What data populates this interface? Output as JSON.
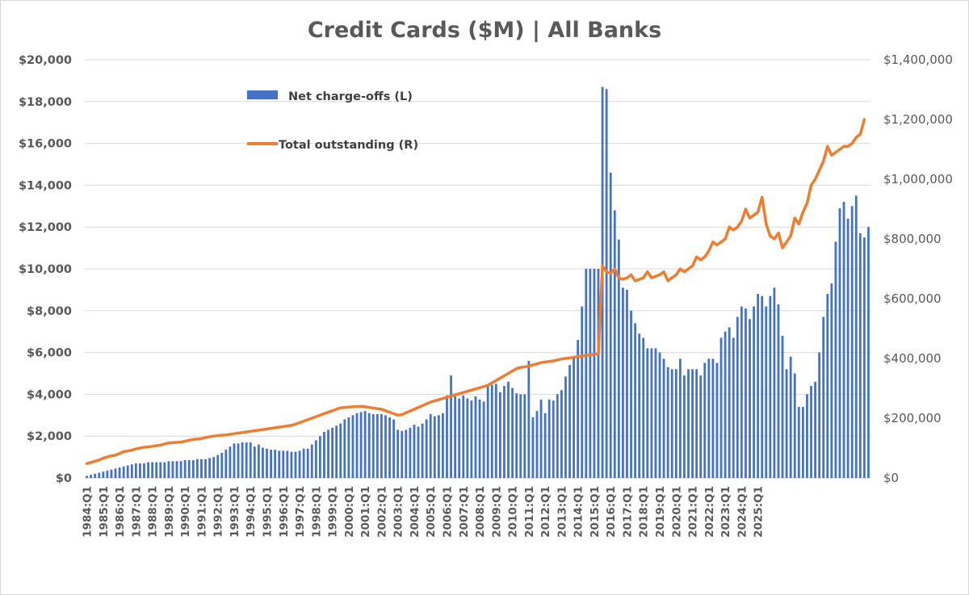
{
  "chart_data": {
    "type": "bar+line",
    "title": "Credit Cards ($M) | All Banks",
    "legend": {
      "placement": "top-left-inside",
      "entries": [
        {
          "name": "Net charge-offs (L)",
          "color": "#4472C4",
          "kind": "bar"
        },
        {
          "name": "Total outstanding (R)",
          "color": "#ED7D31",
          "kind": "line"
        }
      ]
    },
    "x_start": "1984:Q1",
    "x_tick_labels": [
      "1984:Q1",
      "1985:Q1",
      "1986:Q1",
      "1987:Q1",
      "1988:Q1",
      "1989:Q1",
      "1990:Q1",
      "1991:Q1",
      "1992:Q1",
      "1993:Q1",
      "1994:Q1",
      "1995:Q1",
      "1996:Q1",
      "1997:Q1",
      "1998:Q1",
      "1999:Q1",
      "2000:Q1",
      "2001:Q1",
      "2002:Q1",
      "2003:Q1",
      "2004:Q1",
      "2005:Q1",
      "2006:Q1",
      "2007:Q1",
      "2008:Q1",
      "2009:Q1",
      "2010:Q1",
      "2011:Q1",
      "2012:Q1",
      "2013:Q1",
      "2014:Q1",
      "2015:Q1",
      "2016:Q1",
      "2017:Q1",
      "2018:Q1",
      "2019:Q1",
      "2020:Q1",
      "2021:Q1",
      "2022:Q1",
      "2023:Q1",
      "2024:Q1",
      "2025:Q1"
    ],
    "y_left": {
      "min": 0,
      "max": 20000,
      "ticks": [
        "$0",
        "$2,000",
        "$4,000",
        "$6,000",
        "$8,000",
        "$10,000",
        "$12,000",
        "$14,000",
        "$16,000",
        "$18,000",
        "$20,000"
      ]
    },
    "y_right": {
      "min": 0,
      "max": 1400000,
      "ticks": [
        "$0",
        "$200,000",
        "$400,000",
        "$600,000",
        "$800,000",
        "$1,000,000",
        "$1,200,000",
        "$1,400,000"
      ]
    },
    "grid": true,
    "series": [
      {
        "name": "Net charge-offs (L)",
        "axis": "left",
        "kind": "bar",
        "color": "#4472C4",
        "values": [
          100,
          150,
          200,
          250,
          300,
          350,
          400,
          450,
          500,
          550,
          600,
          650,
          700,
          700,
          700,
          750,
          750,
          750,
          750,
          750,
          800,
          800,
          800,
          800,
          850,
          850,
          850,
          900,
          900,
          900,
          950,
          1000,
          1100,
          1200,
          1350,
          1500,
          1650,
          1650,
          1700,
          1700,
          1700,
          1500,
          1600,
          1450,
          1400,
          1350,
          1350,
          1300,
          1300,
          1300,
          1250,
          1250,
          1300,
          1400,
          1400,
          1600,
          1800,
          2000,
          2200,
          2300,
          2400,
          2500,
          2600,
          2800,
          2900,
          3000,
          3100,
          3150,
          3200,
          3100,
          3050,
          3050,
          3050,
          3000,
          2900,
          2800,
          2300,
          2250,
          2300,
          2400,
          2550,
          2450,
          2600,
          2800,
          3050,
          2950,
          3000,
          3100,
          3950,
          4900,
          3900,
          3800,
          3950,
          3800,
          3700,
          3900,
          3750,
          3650,
          4400,
          4450,
          4500,
          4100,
          4400,
          4600,
          4300,
          4050,
          4000,
          4000,
          5600,
          2900,
          3200,
          3750,
          3100,
          3750,
          3700,
          4000,
          4200,
          4850,
          5400,
          5800,
          6600,
          8200,
          10000,
          10000,
          10000,
          10000,
          18700,
          18600,
          14600,
          12800,
          11400,
          9100,
          9000,
          8000,
          7400,
          6900,
          6700,
          6200,
          6200,
          6200,
          6000,
          5700,
          5300,
          5200,
          5200,
          5700,
          4900,
          5200,
          5200,
          5200,
          4900,
          5500,
          5700,
          5700,
          5500,
          6700,
          7000,
          7200,
          6700,
          7700,
          8200,
          8100,
          7600,
          8200,
          8800,
          8700,
          8200,
          8700,
          9100,
          8300,
          6800,
          5200,
          5800,
          5000,
          3400,
          3400,
          4000,
          4400,
          4600,
          6000,
          7700,
          8800,
          9300,
          11300,
          12900,
          13200,
          12400,
          13000,
          13500,
          11700,
          11500,
          12000
        ]
      },
      {
        "name": "Total outstanding (R)",
        "axis": "right",
        "kind": "line",
        "color": "#ED7D31",
        "values": [
          48000,
          52000,
          56000,
          60000,
          66000,
          70000,
          74000,
          76000,
          82000,
          88000,
          90000,
          93000,
          97000,
          100000,
          103000,
          104000,
          106000,
          108000,
          110000,
          114000,
          117000,
          118000,
          119000,
          120000,
          123000,
          126000,
          129000,
          130000,
          132000,
          135000,
          138000,
          140000,
          142000,
          143000,
          144000,
          146000,
          148000,
          150000,
          152000,
          154000,
          156000,
          158000,
          160000,
          162000,
          164000,
          166000,
          168000,
          170000,
          172000,
          174000,
          176000,
          180000,
          185000,
          190000,
          195000,
          200000,
          205000,
          210000,
          215000,
          220000,
          225000,
          230000,
          235000,
          236000,
          237000,
          238000,
          239000,
          240000,
          238000,
          236000,
          234000,
          232000,
          230000,
          225000,
          220000,
          215000,
          210000,
          212000,
          218000,
          224000,
          230000,
          236000,
          242000,
          248000,
          254000,
          258000,
          262000,
          266000,
          270000,
          274000,
          278000,
          282000,
          286000,
          290000,
          294000,
          298000,
          302000,
          306000,
          310000,
          318000,
          326000,
          334000,
          342000,
          350000,
          358000,
          366000,
          370000,
          372000,
          374000,
          378000,
          382000,
          386000,
          388000,
          390000,
          392000,
          395000,
          398000,
          400000,
          402000,
          404000,
          406000,
          408000,
          410000,
          412000,
          414000,
          416000,
          710000,
          690000,
          685000,
          700000,
          670000,
          665000,
          670000,
          680000,
          660000,
          665000,
          670000,
          690000,
          670000,
          675000,
          680000,
          690000,
          660000,
          670000,
          680000,
          700000,
          690000,
          700000,
          710000,
          740000,
          730000,
          740000,
          760000,
          790000,
          780000,
          790000,
          800000,
          840000,
          830000,
          840000,
          860000,
          900000,
          870000,
          880000,
          890000,
          940000,
          850000,
          810000,
          800000,
          820000,
          770000,
          790000,
          810000,
          870000,
          850000,
          890000,
          920000,
          980000,
          1000000,
          1030000,
          1060000,
          1110000,
          1080000,
          1090000,
          1100000,
          1110000,
          1110000,
          1120000,
          1140000,
          1150000,
          1200000
        ]
      }
    ]
  }
}
